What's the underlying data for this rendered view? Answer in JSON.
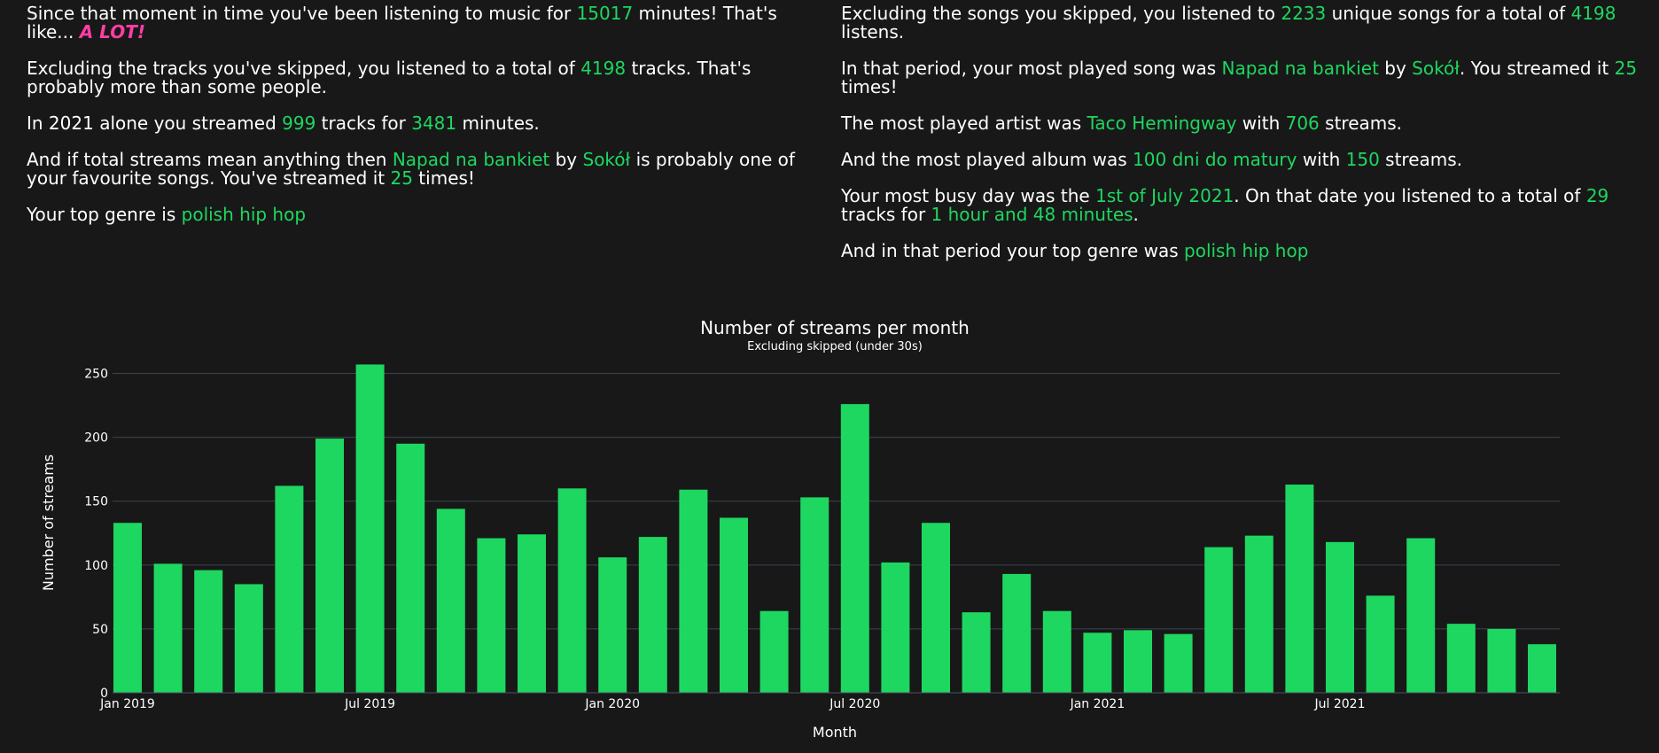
{
  "stats_left": [
    [
      {
        "t": "Since that moment in time you've been listening to music for "
      },
      {
        "t": "15017",
        "c": "hl"
      },
      {
        "t": " minutes! That's like... "
      },
      {
        "t": "A LOT!",
        "c": "pink"
      }
    ],
    [
      {
        "t": "Excluding the tracks you've skipped, you listened to a total of "
      },
      {
        "t": "4198",
        "c": "hl"
      },
      {
        "t": " tracks. That's probably more than some people."
      }
    ],
    [
      {
        "t": "In 2021 alone you streamed "
      },
      {
        "t": "999",
        "c": "hl"
      },
      {
        "t": " tracks for "
      },
      {
        "t": "3481",
        "c": "hl"
      },
      {
        "t": " minutes."
      }
    ],
    [
      {
        "t": "And if total streams mean anything then "
      },
      {
        "t": "Napad na bankiet",
        "c": "hl"
      },
      {
        "t": " by "
      },
      {
        "t": "Sokół",
        "c": "hl"
      },
      {
        "t": " is probably one of your favourite songs. You've streamed it "
      },
      {
        "t": "25",
        "c": "hl"
      },
      {
        "t": " times!"
      }
    ],
    [
      {
        "t": "Your top genre is "
      },
      {
        "t": "polish hip hop",
        "c": "hl"
      }
    ]
  ],
  "stats_right": [
    [
      {
        "t": "Excluding the songs you skipped, you listened to "
      },
      {
        "t": "2233",
        "c": "hl"
      },
      {
        "t": " unique songs for a total of "
      },
      {
        "t": "4198",
        "c": "hl"
      },
      {
        "t": " listens."
      }
    ],
    [
      {
        "t": "In that period, your most played song was "
      },
      {
        "t": "Napad na bankiet",
        "c": "hl"
      },
      {
        "t": " by "
      },
      {
        "t": "Sokół",
        "c": "hl"
      },
      {
        "t": ". You streamed it "
      },
      {
        "t": "25",
        "c": "hl"
      },
      {
        "t": " times!"
      }
    ],
    [
      {
        "t": "The most played artist was "
      },
      {
        "t": "Taco Hemingway",
        "c": "hl"
      },
      {
        "t": " with "
      },
      {
        "t": "706",
        "c": "hl"
      },
      {
        "t": " streams."
      }
    ],
    [
      {
        "t": "And the most played album was "
      },
      {
        "t": "100 dni do matury",
        "c": "hl"
      },
      {
        "t": " with "
      },
      {
        "t": "150",
        "c": "hl"
      },
      {
        "t": " streams."
      }
    ],
    [
      {
        "t": "Your most busy day was the "
      },
      {
        "t": "1st of July 2021",
        "c": "hl"
      },
      {
        "t": ". On that date you listened to a total of "
      },
      {
        "t": "29",
        "c": "hl"
      },
      {
        "t": " tracks for "
      },
      {
        "t": "1 hour and 48 minutes",
        "c": "hl"
      },
      {
        "t": "."
      }
    ],
    [
      {
        "t": "And in that period your top genre was "
      },
      {
        "t": "polish hip hop",
        "c": "hl"
      }
    ]
  ],
  "colors": {
    "background": "#181818",
    "accent": "#1ed760",
    "highlight_pink": "#ff3ea5",
    "grid": "#3a4550",
    "text": "#ffffff"
  },
  "chart_data": {
    "type": "bar",
    "title": "Number of streams per month",
    "subtitle": "Excluding skipped (under 30s)",
    "xlabel": "Month",
    "ylabel": "Number of streams",
    "ylim": [
      0,
      258
    ],
    "yticks": [
      0,
      50,
      100,
      150,
      200,
      250
    ],
    "grid": true,
    "months": [
      "2019-01",
      "2019-02",
      "2019-03",
      "2019-04",
      "2019-05",
      "2019-06",
      "2019-07",
      "2019-08",
      "2019-09",
      "2019-10",
      "2019-11",
      "2019-12",
      "2020-01",
      "2020-02",
      "2020-03",
      "2020-04",
      "2020-05",
      "2020-06",
      "2020-07",
      "2020-08",
      "2020-09",
      "2020-10",
      "2020-11",
      "2020-12",
      "2021-01",
      "2021-02",
      "2021-03",
      "2021-04",
      "2021-05",
      "2021-06",
      "2021-07",
      "2021-08",
      "2021-09",
      "2021-10",
      "2021-11",
      "2021-12"
    ],
    "values": [
      133,
      101,
      96,
      85,
      162,
      199,
      257,
      195,
      144,
      121,
      124,
      160,
      106,
      122,
      159,
      137,
      64,
      153,
      226,
      102,
      133,
      63,
      93,
      64,
      47,
      49,
      46,
      114,
      123,
      163,
      118,
      76,
      121,
      54,
      50,
      38
    ],
    "x_tick_labels": [
      {
        "month": "2019-01",
        "label": "Jan 2019"
      },
      {
        "month": "2019-07",
        "label": "Jul 2019"
      },
      {
        "month": "2020-01",
        "label": "Jan 2020"
      },
      {
        "month": "2020-07",
        "label": "Jul 2020"
      },
      {
        "month": "2021-01",
        "label": "Jan 2021"
      },
      {
        "month": "2021-07",
        "label": "Jul 2021"
      }
    ]
  }
}
